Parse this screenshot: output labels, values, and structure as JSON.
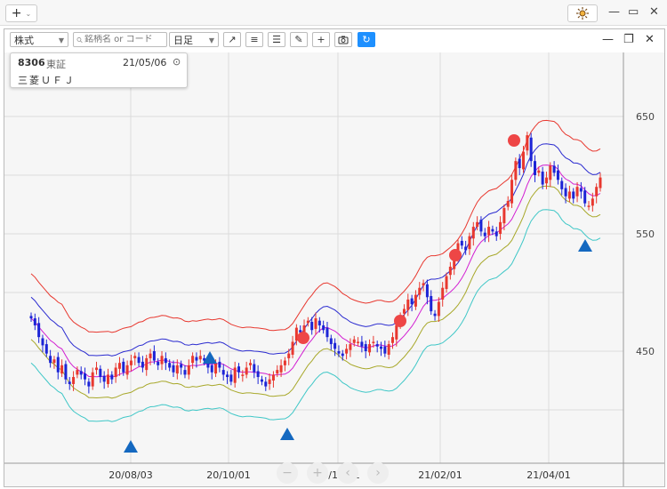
{
  "app": {
    "add_label": "+",
    "chevron": "⌄",
    "window_icon": "sun-gear-icon",
    "min": "—",
    "max": "▭",
    "close": "✕"
  },
  "toolbar": {
    "asset_type": "株式",
    "search_placeholder": "銘柄名 or コード",
    "period": "日足",
    "buttons": [
      "trend-line-icon",
      "horizontal-lines-icon",
      "text-align-icon",
      "pencil-icon",
      "crosshair-icon",
      "camera-icon",
      "refresh-icon"
    ],
    "panel_min": "—",
    "panel_max": "❐",
    "panel_close": "✕"
  },
  "info": {
    "code": "8306",
    "market": "東証",
    "date": "21/05/06",
    "name": "三菱ＵＦＪ"
  },
  "nav": {
    "zoom_out": "−",
    "zoom_in": "+",
    "prev": "‹",
    "next": "›"
  },
  "chart_data": {
    "type": "candlestick",
    "y_ticks": [
      450,
      550,
      650
    ],
    "x_ticks": [
      "20/08/03",
      "20/10/01",
      "20/12/01",
      "21/02/01",
      "21/04/01"
    ],
    "ylim": [
      400,
      700
    ],
    "colors": {
      "up": "#e8382f",
      "down": "#1c24d6",
      "band_outer": "#e8382f",
      "band_mid": "#2b2bd0",
      "band_ma": "#d21ed2",
      "band_lower": "#a8a82a",
      "band_lowest": "#3fc7c7",
      "marker_up": "#1468c0",
      "marker_dot": "#ee4646"
    },
    "close_series": [
      478,
      472,
      462,
      455,
      448,
      440,
      443,
      432,
      438,
      426,
      422,
      428,
      434,
      430,
      426,
      420,
      432,
      436,
      428,
      424,
      430,
      426,
      436,
      440,
      432,
      438,
      442,
      446,
      440,
      436,
      444,
      448,
      442,
      438,
      446,
      440,
      436,
      432,
      438,
      436,
      430,
      438,
      446,
      442,
      446,
      442,
      436,
      432,
      440,
      436,
      430,
      428,
      424,
      436,
      432,
      430,
      436,
      440,
      432,
      428,
      424,
      420,
      426,
      430,
      434,
      438,
      442,
      448,
      458,
      470,
      466,
      472,
      476,
      468,
      478,
      472,
      468,
      462,
      456,
      452,
      448,
      446,
      452,
      456,
      460,
      458,
      454,
      450,
      456,
      458,
      454,
      452,
      448,
      456,
      462,
      472,
      480,
      486,
      494,
      490,
      498,
      504,
      508,
      496,
      484,
      480,
      492,
      504,
      514,
      522,
      532,
      542,
      540,
      536,
      548,
      556,
      560,
      552,
      548,
      556,
      552,
      548,
      560,
      572,
      578,
      596,
      612,
      606,
      620,
      634,
      612,
      600,
      604,
      592,
      598,
      608,
      602,
      596,
      588,
      582,
      586,
      580,
      590,
      586,
      576,
      574,
      580,
      590,
      598
    ],
    "buy_markers": [
      "20/08/03",
      "20/09/01",
      "20/10/26",
      "21/04/27"
    ],
    "sell_markers": [
      "20/11/05",
      "20/12/28",
      "21/02/05",
      "21/03/15"
    ]
  }
}
